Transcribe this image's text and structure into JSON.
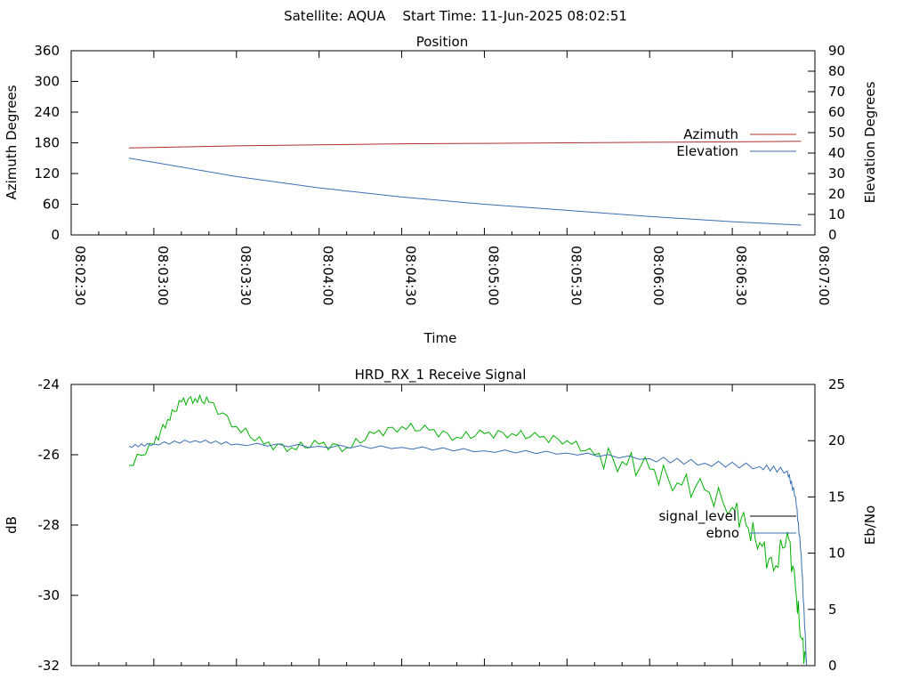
{
  "page_title": "Satellite: AQUA    Start Time: 11-Jun-2025 08:02:51",
  "colors": {
    "azimuth": "#b03030",
    "elevation": "#3a6fb0",
    "signal_level": "#00b000",
    "ebno": "#3a6fb0",
    "axis": "#000000"
  },
  "chart_data": [
    {
      "type": "line",
      "title": "Position",
      "xlabel": "Time",
      "ylabel": "Azimuth Degrees",
      "y2label": "Elevation Degrees",
      "xlim": [
        "08:02:30",
        "08:07:00"
      ],
      "ylim": [
        0,
        360
      ],
      "y2lim": [
        0,
        90
      ],
      "x_ticks": [
        "08:02:30",
        "08:03:00",
        "08:03:30",
        "08:04:00",
        "08:04:30",
        "08:05:00",
        "08:05:30",
        "08:06:00",
        "08:06:30",
        "08:07:00"
      ],
      "y_ticks": [
        "360",
        "300",
        "240",
        "180",
        "120",
        "60",
        "0"
      ],
      "y2_ticks": [
        "90",
        "80",
        "70",
        "60",
        "50",
        "40",
        "30",
        "20",
        "10",
        "0"
      ],
      "legend_position": "right",
      "grid": false,
      "series": [
        {
          "name": "Azimuth",
          "axis": "y1",
          "x": [
            "08:02:51",
            "08:03:30",
            "08:04:00",
            "08:04:30",
            "08:05:00",
            "08:05:30",
            "08:06:00",
            "08:06:30",
            "08:06:55"
          ],
          "values": [
            170,
            174,
            176,
            178,
            179,
            180,
            181,
            182,
            183
          ]
        },
        {
          "name": "Elevation",
          "axis": "y2",
          "x": [
            "08:02:51",
            "08:03:00",
            "08:03:30",
            "08:04:00",
            "08:04:30",
            "08:05:00",
            "08:05:30",
            "08:06:00",
            "08:06:30",
            "08:06:55"
          ],
          "values": [
            37.5,
            35.5,
            28.5,
            23,
            18.5,
            15,
            12,
            9,
            6.5,
            4.8
          ]
        }
      ]
    },
    {
      "type": "line",
      "title": "HRD_RX_1 Receive Signal",
      "xlabel": "",
      "ylabel": "dB",
      "y2label": "Eb/No",
      "xlim": [
        "08:02:30",
        "08:07:00"
      ],
      "ylim": [
        -32,
        -24
      ],
      "y2lim": [
        0,
        25
      ],
      "y_ticks": [
        "-24",
        "-26",
        "-28",
        "-30",
        "-32"
      ],
      "y2_ticks": [
        "25",
        "20",
        "15",
        "10",
        "5",
        "0"
      ],
      "legend_position": "right",
      "grid": false,
      "series": [
        {
          "name": "signal_level",
          "axis": "y1",
          "x": [
            "08:02:51",
            "08:03:00",
            "08:03:05",
            "08:03:10",
            "08:03:15",
            "08:03:20",
            "08:03:30",
            "08:03:40",
            "08:03:50",
            "08:04:00",
            "08:04:10",
            "08:04:20",
            "08:04:30",
            "08:04:40",
            "08:04:50",
            "08:05:00",
            "08:05:10",
            "08:05:20",
            "08:05:30",
            "08:05:40",
            "08:05:50",
            "08:06:00",
            "08:06:10",
            "08:06:20",
            "08:06:30",
            "08:06:35",
            "08:06:40",
            "08:06:45",
            "08:06:50",
            "08:06:53",
            "08:06:55",
            "08:06:57"
          ],
          "values": [
            -26.3,
            -25.7,
            -25.0,
            -24.5,
            -24.4,
            -24.5,
            -25.2,
            -25.7,
            -25.8,
            -25.7,
            -25.8,
            -25.4,
            -25.2,
            -25.3,
            -25.5,
            -25.4,
            -25.4,
            -25.5,
            -25.6,
            -26.0,
            -26.2,
            -26.4,
            -26.8,
            -27.0,
            -27.5,
            -28.0,
            -28.5,
            -29.3,
            -28.2,
            -29.8,
            -31.2,
            -32.0
          ]
        },
        {
          "name": "ebno",
          "axis": "y2",
          "x": [
            "08:02:51",
            "08:03:00",
            "08:03:15",
            "08:03:30",
            "08:04:00",
            "08:04:30",
            "08:05:00",
            "08:05:30",
            "08:06:00",
            "08:06:20",
            "08:06:40",
            "08:06:50",
            "08:06:53",
            "08:06:55",
            "08:06:57"
          ],
          "values": [
            19.5,
            19.7,
            20.0,
            19.7,
            19.5,
            19.4,
            19.1,
            18.9,
            18.4,
            18.0,
            17.7,
            17.3,
            15.0,
            10.0,
            0
          ]
        }
      ]
    }
  ]
}
